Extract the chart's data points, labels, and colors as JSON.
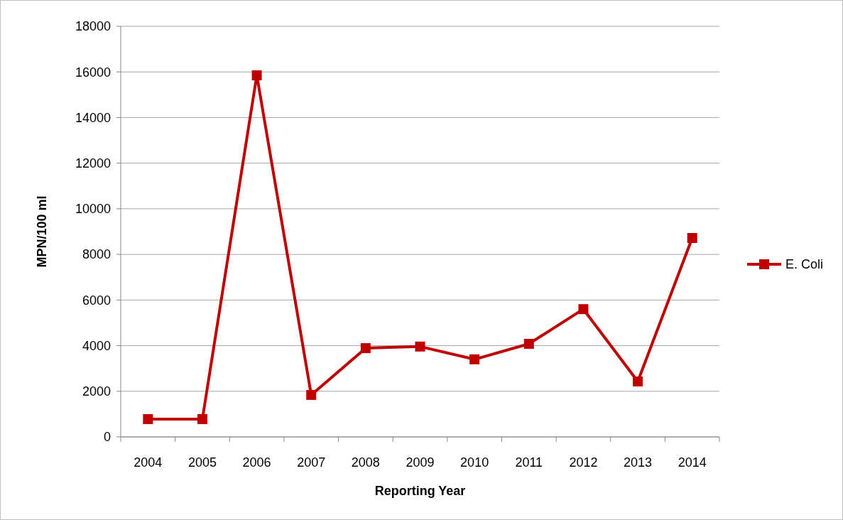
{
  "chart_data": {
    "type": "line",
    "xlabel": "Reporting Year",
    "ylabel": "MPN/100 ml",
    "categories": [
      "2004",
      "2005",
      "2006",
      "2007",
      "2008",
      "2009",
      "2010",
      "2011",
      "2012",
      "2013",
      "2014"
    ],
    "series": [
      {
        "name": "E. Coli",
        "color": "#c00000",
        "values": [
          780,
          780,
          15850,
          1840,
          3890,
          3960,
          3400,
          4080,
          5600,
          2430,
          8720
        ]
      }
    ],
    "ylim": [
      0,
      18000
    ],
    "yticks": [
      0,
      2000,
      4000,
      6000,
      8000,
      10000,
      12000,
      14000,
      16000,
      18000
    ],
    "grid": "y",
    "legend": "right",
    "marker": "square",
    "line_style": "solid"
  }
}
